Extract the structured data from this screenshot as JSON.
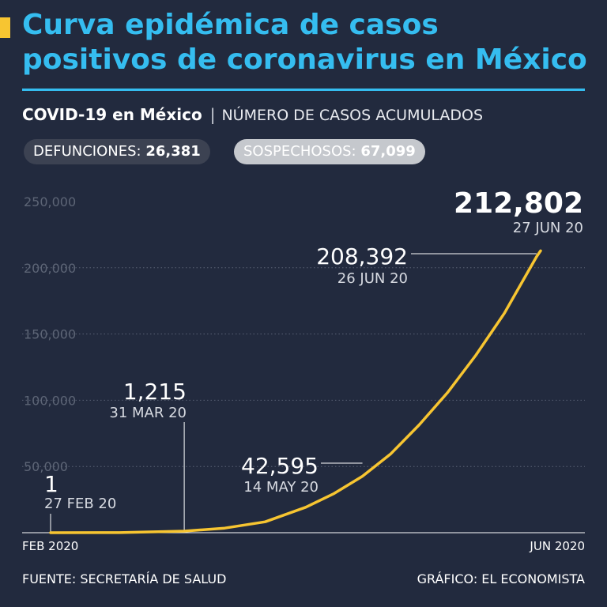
{
  "header": {
    "title": "Curva epidémica de casos positivos de coronavirus en México",
    "subtitle_strong": "COVID-19 en México",
    "subtitle_separator": "|",
    "subtitle_light": "NÚMERO DE CASOS ACUMULADOS"
  },
  "badges": {
    "defunciones_label": "DEFUNCIONES:",
    "defunciones_value": "26,381",
    "sospechosos_label": "SOSPECHOSOS:",
    "sospechosos_value": "67,099"
  },
  "colors": {
    "background": "#222a3e",
    "title": "#35bdf0",
    "line": "#f7c531",
    "grid": "#5a6275",
    "tick": "#5d6576"
  },
  "chart_data": {
    "type": "line",
    "ylim": [
      0,
      250000
    ],
    "y_ticks": [
      {
        "value": 50000,
        "label": "50,000"
      },
      {
        "value": 100000,
        "label": "100,000"
      },
      {
        "value": 150000,
        "label": "150,000"
      },
      {
        "value": 200000,
        "label": "200,000"
      },
      {
        "value": 250000,
        "label": "250,000"
      }
    ],
    "x_range": [
      "2020-02-27",
      "2020-06-27"
    ],
    "x_labels": [
      {
        "date": "2020-02-27",
        "label": "FEB 2020"
      },
      {
        "date": "2020-06-27",
        "label": "JUN 2020"
      }
    ],
    "grid": true,
    "series": [
      {
        "points": [
          {
            "date": "2020-02-27",
            "value": 1
          },
          {
            "date": "2020-03-15",
            "value": 53
          },
          {
            "date": "2020-03-31",
            "value": 1215
          },
          {
            "date": "2020-04-10",
            "value": 3441
          },
          {
            "date": "2020-04-20",
            "value": 8261
          },
          {
            "date": "2020-04-30",
            "value": 19224
          },
          {
            "date": "2020-05-07",
            "value": 29616
          },
          {
            "date": "2020-05-14",
            "value": 42595
          },
          {
            "date": "2020-05-21",
            "value": 59567
          },
          {
            "date": "2020-05-28",
            "value": 81400
          },
          {
            "date": "2020-06-04",
            "value": 105680
          },
          {
            "date": "2020-06-11",
            "value": 133974
          },
          {
            "date": "2020-06-18",
            "value": 165455
          },
          {
            "date": "2020-06-26",
            "value": 208392
          },
          {
            "date": "2020-06-27",
            "value": 212802
          }
        ]
      }
    ],
    "annotations": [
      {
        "date": "2020-02-27",
        "value": 1,
        "value_label": "1",
        "date_label": "27 FEB 20"
      },
      {
        "date": "2020-03-31",
        "value": 1215,
        "value_label": "1,215",
        "date_label": "31 MAR 20"
      },
      {
        "date": "2020-05-14",
        "value": 42595,
        "value_label": "42,595",
        "date_label": "14 MAY 20"
      },
      {
        "date": "2020-06-26",
        "value": 208392,
        "value_label": "208,392",
        "date_label": "26 JUN 20"
      },
      {
        "date": "2020-06-27",
        "value": 212802,
        "value_label": "212,802",
        "date_label": "27 JUN 20"
      }
    ]
  },
  "footer": {
    "source": "FUENTE: SECRETARÍA DE SALUD",
    "credit": "GRÁFICO: EL ECONOMISTA"
  }
}
